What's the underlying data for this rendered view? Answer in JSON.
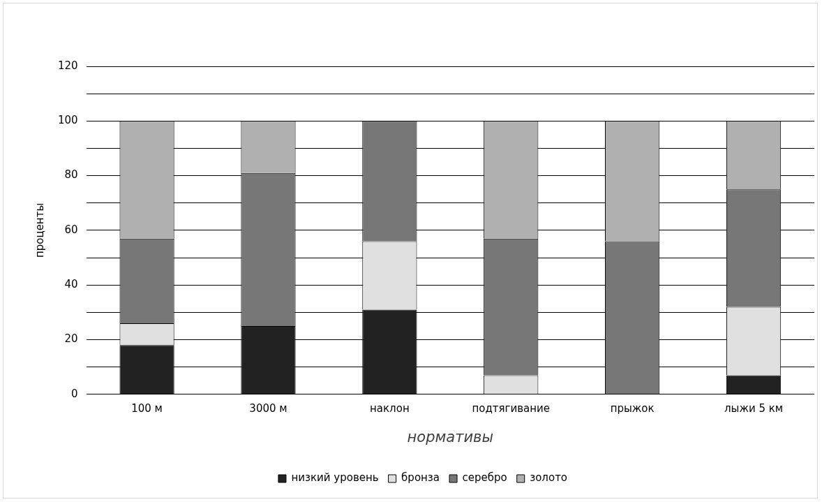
{
  "chart_data": {
    "type": "bar",
    "stacked": true,
    "xlabel": "нормативы",
    "ylabel": "проценты",
    "categories": [
      "100 м",
      "3000 м",
      "наклон",
      "подтягивание",
      "прыжок",
      "лыжи 5 км"
    ],
    "series": [
      {
        "name": "низкий уровень",
        "color": "#222222",
        "values": [
          18,
          25,
          31,
          0,
          0,
          7
        ]
      },
      {
        "name": "бронза",
        "color": "#e0e0e0",
        "values": [
          8,
          0,
          25,
          7,
          0,
          25
        ]
      },
      {
        "name": "серебро",
        "color": "#777777",
        "values": [
          31,
          56,
          44,
          50,
          56,
          43
        ]
      },
      {
        "name": "золото",
        "color": "#b0b0b0",
        "values": [
          43,
          19,
          0,
          43,
          44,
          25
        ]
      }
    ],
    "ylim": [
      0,
      120
    ],
    "yticks": [
      0,
      {
        "value": 10,
        "label": null
      },
      20,
      {
        "value": 30,
        "label": null
      },
      40,
      {
        "value": 50,
        "label": null
      },
      60,
      {
        "value": 70,
        "label": null
      },
      80,
      {
        "value": 90,
        "label": null
      },
      100,
      {
        "value": 110,
        "label": null
      },
      120
    ],
    "grid": "y",
    "legend": "bottom"
  }
}
